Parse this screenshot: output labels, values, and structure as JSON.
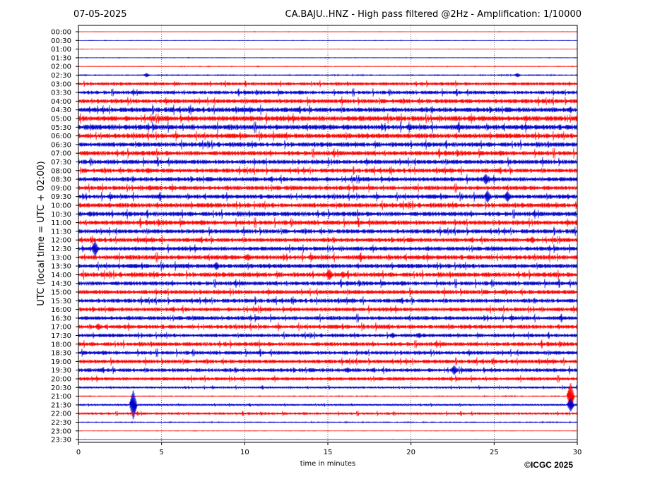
{
  "chart_data": {
    "type": "line",
    "date": "07-05-2025",
    "title": "CA.BAJU..HNZ - High pass filtered @2Hz - Amplification: 1/10000",
    "xlabel": "time in minutes",
    "ylabel": "UTC (local time = UTC + 02:00)",
    "xlim": [
      0,
      30
    ],
    "x_ticks": [
      "0",
      "5",
      "10",
      "15",
      "20",
      "25",
      "30"
    ],
    "x_tick_values": [
      0,
      5,
      10,
      15,
      20,
      25,
      30
    ],
    "vertical_gridlines_at": [
      5,
      10,
      15,
      20,
      25
    ],
    "grid": "vertical dotted",
    "row_labels": [
      "00:00",
      "00:30",
      "01:00",
      "01:30",
      "02:00",
      "02:30",
      "03:00",
      "03:30",
      "04:00",
      "04:30",
      "05:00",
      "05:30",
      "06:00",
      "06:30",
      "07:00",
      "07:30",
      "08:00",
      "08:30",
      "09:00",
      "09:30",
      "10:00",
      "10:30",
      "11:00",
      "11:30",
      "12:00",
      "12:30",
      "13:00",
      "13:30",
      "14:00",
      "14:30",
      "15:00",
      "15:30",
      "16:00",
      "16:30",
      "17:00",
      "17:30",
      "18:00",
      "18:30",
      "19:00",
      "19:30",
      "20:00",
      "20:30",
      "21:00",
      "21:30",
      "22:00",
      "22:30",
      "23:00",
      "23:30"
    ],
    "trace_colors": [
      "#ff0000",
      "#0000cc"
    ],
    "noise_level": [
      0.15,
      0.15,
      0.15,
      0.2,
      0.25,
      0.5,
      1.6,
      1.8,
      2.1,
      2.4,
      2.6,
      2.6,
      2.4,
      2.3,
      2.3,
      2.2,
      2.1,
      2.2,
      2.1,
      2.2,
      2.3,
      2.3,
      2.3,
      2.1,
      2.1,
      2.1,
      2.3,
      2.2,
      2.3,
      2.1,
      2.1,
      2.0,
      2.0,
      2.0,
      2.0,
      1.8,
      2.0,
      1.9,
      1.9,
      1.9,
      1.7,
      1.0,
      0.4,
      0.9,
      1.2,
      0.4,
      0.15,
      0.1
    ],
    "events": [
      {
        "row": 5,
        "minute": 4.1,
        "amp": 3
      },
      {
        "row": 5,
        "minute": 26.4,
        "amp": 3
      },
      {
        "row": 16,
        "minute": 4.2,
        "amp": 4
      },
      {
        "row": 17,
        "minute": 24.5,
        "amp": 8
      },
      {
        "row": 18,
        "minute": 4.3,
        "amp": 4
      },
      {
        "row": 19,
        "minute": 24.6,
        "amp": 9
      },
      {
        "row": 19,
        "minute": 25.8,
        "amp": 8
      },
      {
        "row": 21,
        "minute": 0.7,
        "amp": 4
      },
      {
        "row": 24,
        "minute": 27.3,
        "amp": 5
      },
      {
        "row": 25,
        "minute": 1.0,
        "amp": 11
      },
      {
        "row": 26,
        "minute": 10.2,
        "amp": 5
      },
      {
        "row": 27,
        "minute": 8.3,
        "amp": 6
      },
      {
        "row": 28,
        "minute": 15.1,
        "amp": 8
      },
      {
        "row": 28,
        "minute": 15.9,
        "amp": 5
      },
      {
        "row": 34,
        "minute": 1.2,
        "amp": 5
      },
      {
        "row": 35,
        "minute": 18.9,
        "amp": 4
      },
      {
        "row": 35,
        "minute": 20.5,
        "amp": 4
      },
      {
        "row": 39,
        "minute": 22.6,
        "amp": 7
      },
      {
        "row": 39,
        "minute": 16.2,
        "amp": 4
      },
      {
        "row": 42,
        "minute": 29.6,
        "amp": 20
      },
      {
        "row": 43,
        "minute": 3.3,
        "amp": 22
      },
      {
        "row": 43,
        "minute": 29.6,
        "amp": 10
      }
    ]
  },
  "copyright": "©ICGC 2025"
}
